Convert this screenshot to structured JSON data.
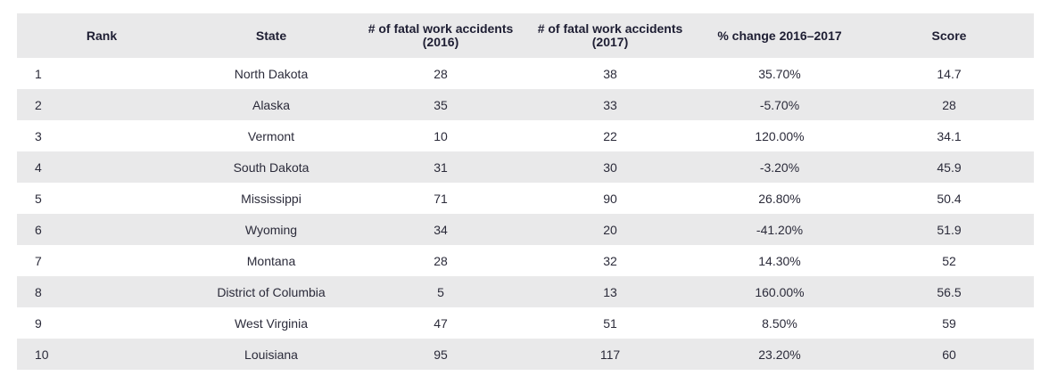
{
  "table": {
    "headers": {
      "rank": "Rank",
      "state": "State",
      "fatal_2016": "# of fatal work accidents (2016)",
      "fatal_2017": "# of fatal work accidents (2017)",
      "pct_change": "% change 2016–2017",
      "score": "Score"
    },
    "rows": [
      {
        "rank": "1",
        "state": "North Dakota",
        "fatal_2016": "28",
        "fatal_2017": "38",
        "pct_change": "35.70%",
        "score": "14.7"
      },
      {
        "rank": "2",
        "state": "Alaska",
        "fatal_2016": "35",
        "fatal_2017": "33",
        "pct_change": "-5.70%",
        "score": "28"
      },
      {
        "rank": "3",
        "state": "Vermont",
        "fatal_2016": "10",
        "fatal_2017": "22",
        "pct_change": "120.00%",
        "score": "34.1"
      },
      {
        "rank": "4",
        "state": "South Dakota",
        "fatal_2016": "31",
        "fatal_2017": "30",
        "pct_change": "-3.20%",
        "score": "45.9"
      },
      {
        "rank": "5",
        "state": "Mississippi",
        "fatal_2016": "71",
        "fatal_2017": "90",
        "pct_change": "26.80%",
        "score": "50.4"
      },
      {
        "rank": "6",
        "state": "Wyoming",
        "fatal_2016": "34",
        "fatal_2017": "20",
        "pct_change": "-41.20%",
        "score": "51.9"
      },
      {
        "rank": "7",
        "state": "Montana",
        "fatal_2016": "28",
        "fatal_2017": "32",
        "pct_change": "14.30%",
        "score": "52"
      },
      {
        "rank": "8",
        "state": "District of Columbia",
        "fatal_2016": "5",
        "fatal_2017": "13",
        "pct_change": "160.00%",
        "score": "56.5"
      },
      {
        "rank": "9",
        "state": "West Virginia",
        "fatal_2016": "47",
        "fatal_2017": "51",
        "pct_change": "8.50%",
        "score": "59"
      },
      {
        "rank": "10",
        "state": "Louisiana",
        "fatal_2016": "95",
        "fatal_2017": "117",
        "pct_change": "23.20%",
        "score": "60"
      }
    ]
  },
  "colors": {
    "header_bg": "#e9e9ea",
    "stripe_bg": "#e9e9ea",
    "text": "#2b2b3a"
  }
}
